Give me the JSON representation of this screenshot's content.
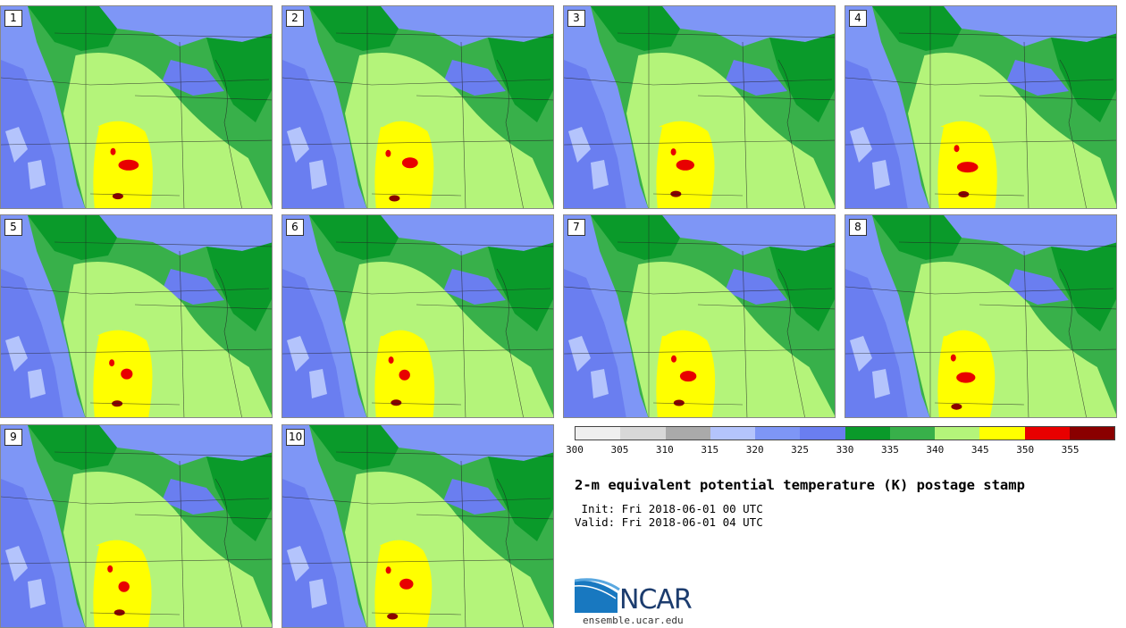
{
  "panels": [
    "1",
    "2",
    "3",
    "4",
    "5",
    "6",
    "7",
    "8",
    "9",
    "10"
  ],
  "colorbar": {
    "colors": [
      "#efefef",
      "#d8d8d8",
      "#aaaaaa",
      "#b4c4fc",
      "#7e96f6",
      "#6a7ef0",
      "#0a9a2a",
      "#38b04a",
      "#b4f47a",
      "#ffff00",
      "#e80000",
      "#8a0000"
    ],
    "ticks": [
      "300",
      "305",
      "310",
      "315",
      "320",
      "325",
      "330",
      "335",
      "340",
      "345",
      "350",
      "355"
    ]
  },
  "title": "2-m equivalent potential temperature (K) postage stamp",
  "init_line": " Init: Fri 2018-06-01 00 UTC",
  "valid_line": "Valid: Fri 2018-06-01 04 UTC",
  "logo": {
    "text": "NCAR",
    "site": "ensemble.ucar.edu"
  }
}
